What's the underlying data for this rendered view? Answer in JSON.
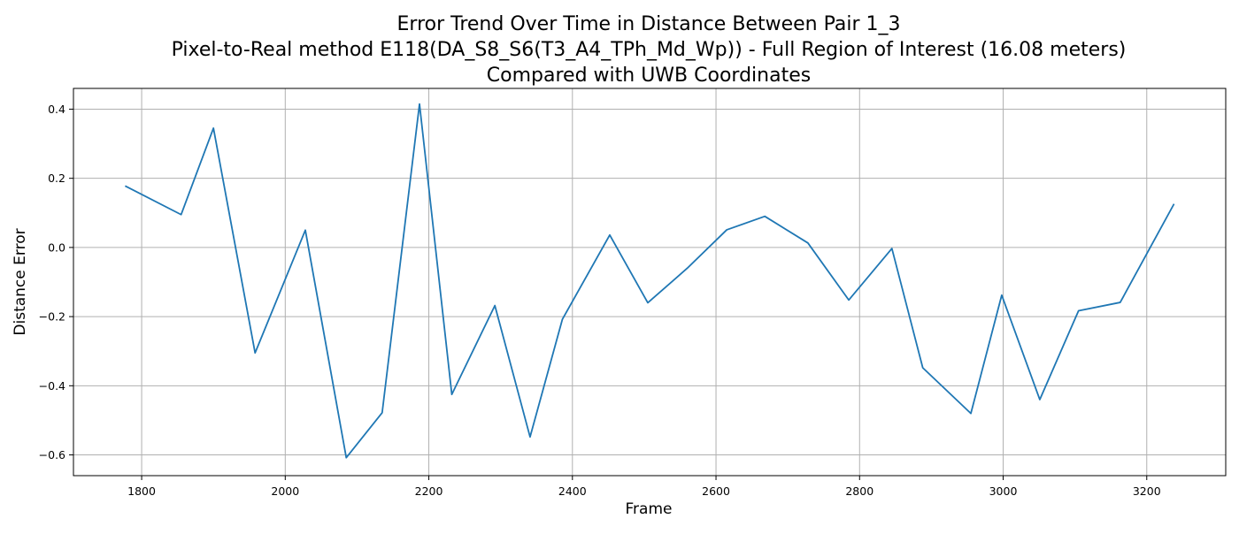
{
  "chart_data": {
    "type": "line",
    "title": "Error Trend Over Time in Distance Between Pair 1_3\nPixel-to-Real method E118(DA_S8_S6(T3_A4_TPh_Md_Wp)) - Full Region of Interest (16.08 meters)\nCompared with UWB Coordinates",
    "xlabel": "Frame",
    "ylabel": "Distance Error",
    "xlim": [
      1705,
      3310
    ],
    "ylim": [
      -0.66,
      0.46
    ],
    "xticks": [
      1800,
      2000,
      2200,
      2400,
      2600,
      2800,
      3000,
      3200
    ],
    "yticks": [
      0.4,
      0.2,
      0.0,
      -0.2,
      -0.4,
      -0.6
    ],
    "grid": true,
    "legend": "none",
    "series": [
      {
        "color": "#1f77b4",
        "x": [
          1777,
          1855,
          1900,
          1958,
          2028,
          2085,
          2135,
          2187,
          2232,
          2292,
          2341,
          2386,
          2452,
          2505,
          2560,
          2615,
          2668,
          2728,
          2785,
          2845,
          2888,
          2955,
          2998,
          3051,
          3105,
          3163,
          3238
        ],
        "y": [
          0.178,
          0.095,
          0.345,
          -0.305,
          0.05,
          -0.608,
          -0.478,
          0.415,
          -0.425,
          -0.168,
          -0.548,
          -0.208,
          0.036,
          -0.16,
          -0.06,
          0.051,
          0.09,
          0.013,
          -0.152,
          -0.003,
          -0.348,
          -0.48,
          -0.138,
          -0.44,
          -0.183,
          -0.159,
          0.126
        ]
      }
    ]
  }
}
